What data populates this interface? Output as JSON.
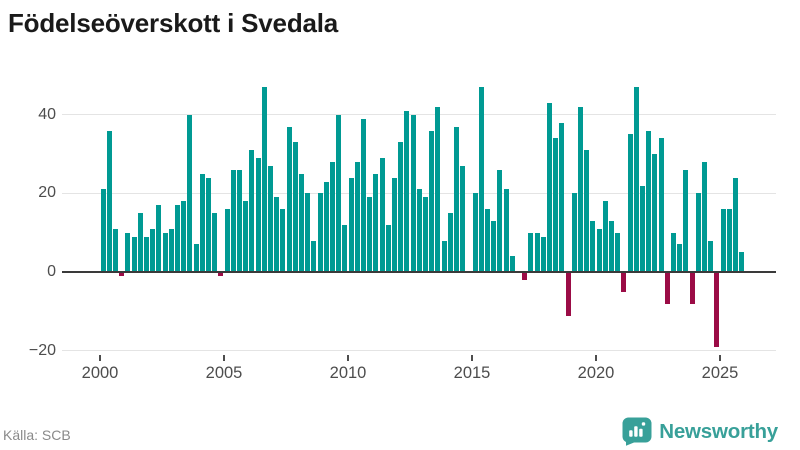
{
  "title": "Födelseöverskott i Svedala",
  "source": "Källa: SCB",
  "brand": {
    "name": "Newsworthy",
    "color": "#38a099"
  },
  "chart_data": {
    "type": "bar",
    "title": "Födelseöverskott i Svedala",
    "xlabel": "",
    "ylabel": "",
    "x_unit": "quarter",
    "x_start": "2000-Q1",
    "x_end": "2025-Q4",
    "x_ticks": [
      2000,
      2005,
      2010,
      2015,
      2020,
      2025
    ],
    "y_ticks": [
      40,
      20,
      0,
      -20
    ],
    "ylim": [
      -22,
      49
    ],
    "grid": "horizontal",
    "legend": "none",
    "positive_color": "#009a93",
    "negative_color": "#9b0c46",
    "series": [
      {
        "name": "Födelseöverskott",
        "values": [
          21,
          36,
          11,
          -1,
          10,
          9,
          15,
          9,
          11,
          17,
          10,
          11,
          17,
          18,
          40,
          7,
          25,
          24,
          15,
          -1,
          16,
          26,
          26,
          18,
          31,
          29,
          47,
          27,
          19,
          16,
          37,
          33,
          25,
          20,
          8,
          20,
          23,
          28,
          40,
          12,
          24,
          28,
          39,
          19,
          25,
          29,
          12,
          24,
          33,
          41,
          40,
          21,
          19,
          36,
          42,
          8,
          15,
          37,
          27,
          0,
          20,
          47,
          16,
          13,
          26,
          21,
          4,
          0,
          -2,
          10,
          10,
          9,
          43,
          34,
          38,
          -11,
          20,
          42,
          31,
          13,
          11,
          18,
          13,
          10,
          -5,
          35,
          47,
          22,
          36,
          30,
          34,
          -8,
          10,
          7,
          26,
          -8,
          20,
          28,
          8,
          -19,
          16,
          16,
          24,
          5
        ]
      }
    ]
  }
}
